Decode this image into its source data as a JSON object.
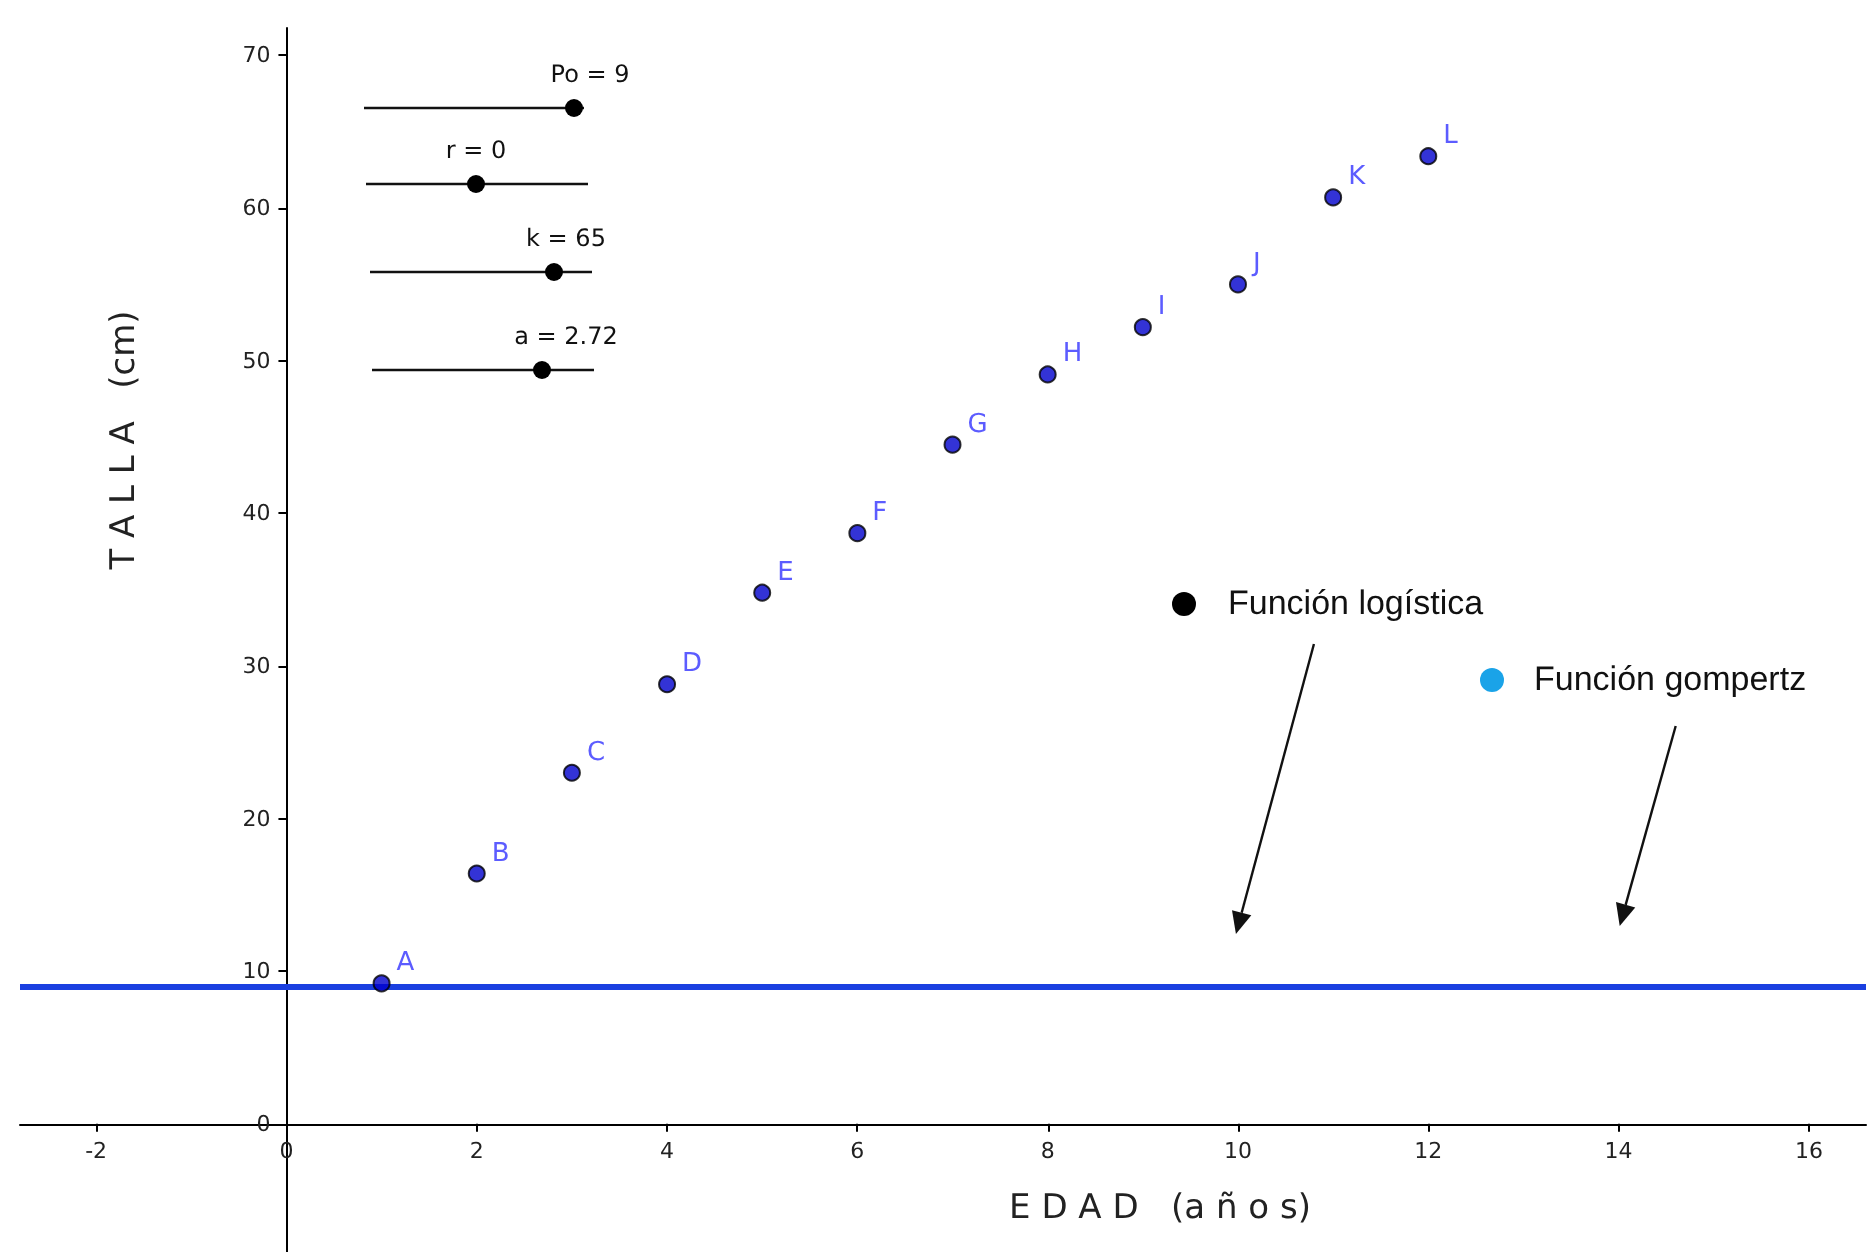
{
  "chart_data": {
    "type": "scatter",
    "xlabel": "E D A D   (a ñ o s)",
    "ylabel": "T A L L A   (cm)",
    "x": [
      1,
      2,
      3,
      4,
      5,
      6,
      7,
      8,
      9,
      10,
      11,
      12
    ],
    "series": [
      {
        "color": "#0000cc",
        "values": [
          9.2,
          16.4,
          23.0,
          28.8,
          34.8,
          38.7,
          44.5,
          49.1,
          52.2,
          55.0,
          60.7,
          63.4
        ],
        "value_labels": [
          "A",
          "B",
          "C",
          "D",
          "E",
          "F",
          "G",
          "H",
          "I",
          "J",
          "K",
          "L"
        ]
      }
    ],
    "ref_lines": [
      {
        "axis": "y",
        "value": 9,
        "color": "#1a3fe0",
        "line_style": "solid"
      }
    ],
    "xlim": [
      -2.8,
      16.6
    ],
    "ylim": [
      -8.4,
      71.8
    ],
    "xticks": [
      -2,
      0,
      2,
      4,
      6,
      8,
      10,
      12,
      14,
      16
    ],
    "yticks": [
      0,
      10,
      20,
      30,
      40,
      50,
      60,
      70
    ],
    "annotations": [
      "Po = 9",
      "r = 0",
      "k = 65",
      "a = 2.72",
      "Función logística",
      "Función gompertz"
    ],
    "marker": "circle",
    "grid": false
  }
}
